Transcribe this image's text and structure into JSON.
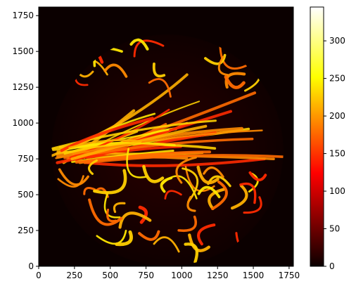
{
  "chart_data": {
    "type": "heatmap",
    "title": "",
    "xlabel": "",
    "ylabel": "",
    "xlim": [
      0,
      1780
    ],
    "ylim": [
      0,
      1810
    ],
    "x_ticks": [
      0,
      250,
      500,
      750,
      1000,
      1250,
      1500,
      1750
    ],
    "y_ticks": [
      0,
      250,
      500,
      750,
      1000,
      1250,
      1500,
      1750
    ],
    "colorbar": {
      "colormap": "hot",
      "range": [
        0,
        345
      ],
      "ticks": [
        0,
        50,
        100,
        150,
        200,
        250,
        300
      ]
    },
    "content": {
      "shape": "circular field of view",
      "center": [
        900,
        810
      ],
      "radius": 810,
      "background_value": 5,
      "structures": "bright elongated fibrous streaks radiating from the left, many curled segments in lower half"
    }
  }
}
